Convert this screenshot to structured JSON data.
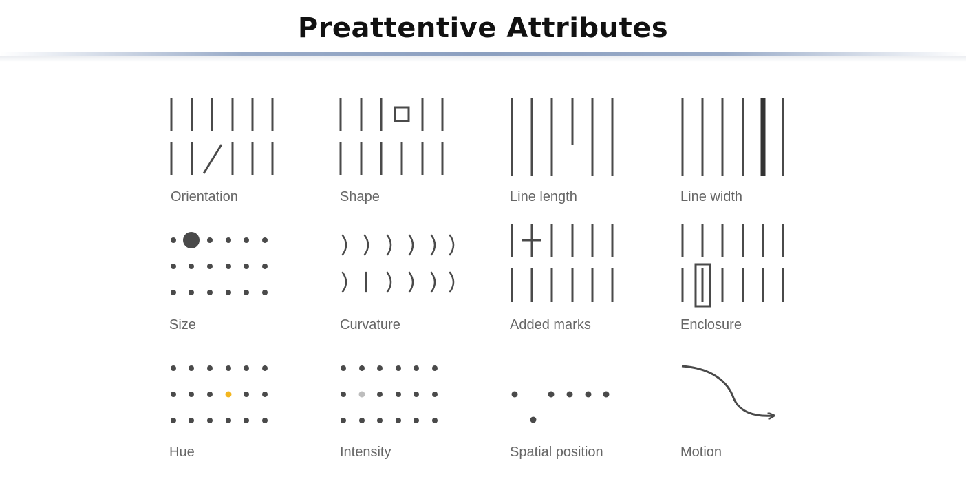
{
  "title": "Preattentive Attributes",
  "colors": {
    "mark": "#4a4a4a",
    "highlight_hue": "#f3b61f",
    "highlight_intensity": "#bdbdbd",
    "label": "#666666",
    "divider": "#7f95b9"
  },
  "attributes": [
    {
      "label": "Orientation",
      "icon": "orientation-icon"
    },
    {
      "label": "Shape",
      "icon": "shape-icon"
    },
    {
      "label": "Line length",
      "icon": "line-length-icon"
    },
    {
      "label": "Line width",
      "icon": "line-width-icon"
    },
    {
      "label": "Size",
      "icon": "size-icon"
    },
    {
      "label": "Curvature",
      "icon": "curvature-icon"
    },
    {
      "label": "Added marks",
      "icon": "added-marks-icon"
    },
    {
      "label": "Enclosure",
      "icon": "enclosure-icon"
    },
    {
      "label": "Hue",
      "icon": "hue-icon"
    },
    {
      "label": "Intensity",
      "icon": "intensity-icon"
    },
    {
      "label": "Spatial position",
      "icon": "spatial-position-icon"
    },
    {
      "label": "Motion",
      "icon": "motion-arrow-icon"
    }
  ]
}
